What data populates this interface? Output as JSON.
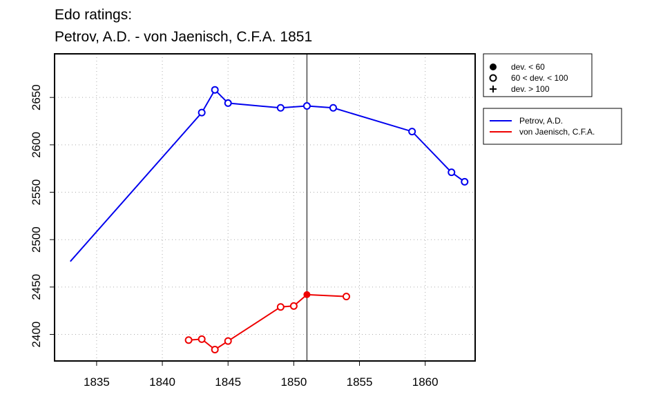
{
  "chart_data": {
    "type": "line",
    "title_lines": [
      "Edo ratings:",
      "Petrov, A.D. - von Jaenisch, C.F.A. 1851"
    ],
    "xlabel": "",
    "ylabel": "",
    "xlim": [
      1831.8,
      1863.8
    ],
    "ylim": [
      2372,
      2696
    ],
    "x_ticks": [
      1835,
      1840,
      1845,
      1850,
      1855,
      1860
    ],
    "y_ticks": [
      2400,
      2450,
      2500,
      2550,
      2600,
      2650
    ],
    "grid": true,
    "reference_line_x": 1851,
    "marker_legend": [
      {
        "symbol": "filled-circle",
        "label": "dev. < 60"
      },
      {
        "symbol": "open-circle",
        "label": "60 < dev. < 100"
      },
      {
        "symbol": "plus",
        "label": "dev. > 100"
      }
    ],
    "series": [
      {
        "name": "Petrov, A.D.",
        "color": "#0000ee",
        "points": [
          {
            "x": 1833,
            "y": 2477,
            "marker": "none"
          },
          {
            "x": 1843,
            "y": 2634,
            "marker": "open-circle"
          },
          {
            "x": 1844,
            "y": 2658,
            "marker": "open-circle"
          },
          {
            "x": 1845,
            "y": 2644,
            "marker": "open-circle"
          },
          {
            "x": 1849,
            "y": 2639,
            "marker": "open-circle"
          },
          {
            "x": 1851,
            "y": 2641,
            "marker": "open-circle"
          },
          {
            "x": 1853,
            "y": 2639,
            "marker": "open-circle"
          },
          {
            "x": 1859,
            "y": 2614,
            "marker": "open-circle"
          },
          {
            "x": 1862,
            "y": 2571,
            "marker": "open-circle"
          },
          {
            "x": 1863,
            "y": 2561,
            "marker": "open-circle"
          }
        ]
      },
      {
        "name": "von Jaenisch, C.F.A.",
        "color": "#ee0000",
        "points": [
          {
            "x": 1842,
            "y": 2394,
            "marker": "open-circle"
          },
          {
            "x": 1843,
            "y": 2395,
            "marker": "open-circle"
          },
          {
            "x": 1844,
            "y": 2384,
            "marker": "open-circle"
          },
          {
            "x": 1845,
            "y": 2393,
            "marker": "open-circle"
          },
          {
            "x": 1849,
            "y": 2429,
            "marker": "open-circle"
          },
          {
            "x": 1850,
            "y": 2430,
            "marker": "open-circle"
          },
          {
            "x": 1851,
            "y": 2442,
            "marker": "filled-circle"
          },
          {
            "x": 1854,
            "y": 2440,
            "marker": "open-circle"
          }
        ]
      }
    ]
  }
}
